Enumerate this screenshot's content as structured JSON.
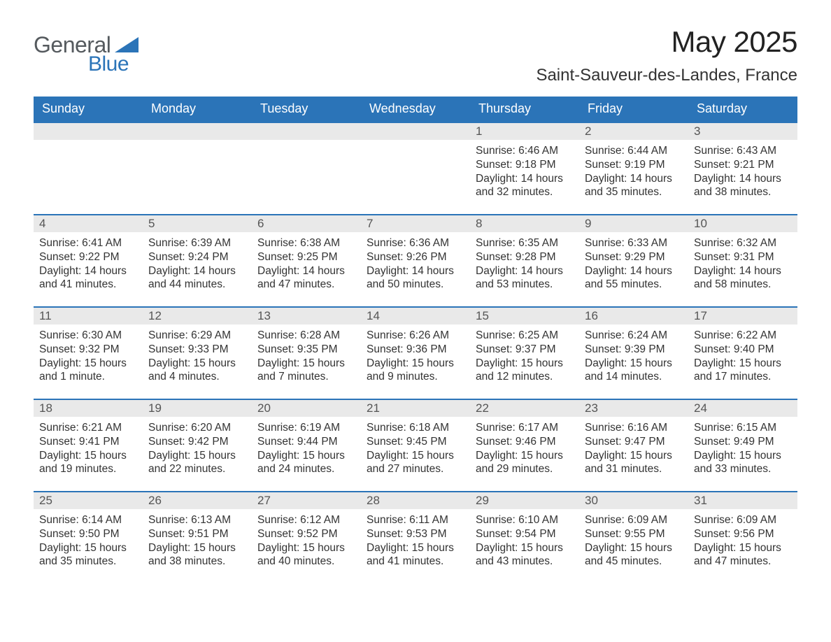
{
  "logo": {
    "word1": "General",
    "word2": "Blue",
    "word1_color": "#555a5e",
    "word2_color": "#2b74b8",
    "triangle_color": "#2b74b8"
  },
  "header": {
    "title": "May 2025",
    "location": "Saint-Sauveur-des-Landes, France",
    "title_fontsize": 42,
    "location_fontsize": 24
  },
  "calendar": {
    "type": "table",
    "accent_color": "#2b74b8",
    "header_bg": "#2b74b8",
    "header_text_color": "#ffffff",
    "daynum_bg": "#e9e9e9",
    "daynum_text_color": "#555555",
    "body_text_color": "#333333",
    "background_color": "#ffffff",
    "row_border_color": "#2b74b8",
    "body_fontsize": 15.5,
    "header_fontsize": 18,
    "columns": [
      "Sunday",
      "Monday",
      "Tuesday",
      "Wednesday",
      "Thursday",
      "Friday",
      "Saturday"
    ],
    "weeks": [
      [
        {
          "day": "",
          "sunrise": "",
          "sunset": "",
          "daylight": ""
        },
        {
          "day": "",
          "sunrise": "",
          "sunset": "",
          "daylight": ""
        },
        {
          "day": "",
          "sunrise": "",
          "sunset": "",
          "daylight": ""
        },
        {
          "day": "",
          "sunrise": "",
          "sunset": "",
          "daylight": ""
        },
        {
          "day": "1",
          "sunrise": "Sunrise: 6:46 AM",
          "sunset": "Sunset: 9:18 PM",
          "daylight": "Daylight: 14 hours and 32 minutes."
        },
        {
          "day": "2",
          "sunrise": "Sunrise: 6:44 AM",
          "sunset": "Sunset: 9:19 PM",
          "daylight": "Daylight: 14 hours and 35 minutes."
        },
        {
          "day": "3",
          "sunrise": "Sunrise: 6:43 AM",
          "sunset": "Sunset: 9:21 PM",
          "daylight": "Daylight: 14 hours and 38 minutes."
        }
      ],
      [
        {
          "day": "4",
          "sunrise": "Sunrise: 6:41 AM",
          "sunset": "Sunset: 9:22 PM",
          "daylight": "Daylight: 14 hours and 41 minutes."
        },
        {
          "day": "5",
          "sunrise": "Sunrise: 6:39 AM",
          "sunset": "Sunset: 9:24 PM",
          "daylight": "Daylight: 14 hours and 44 minutes."
        },
        {
          "day": "6",
          "sunrise": "Sunrise: 6:38 AM",
          "sunset": "Sunset: 9:25 PM",
          "daylight": "Daylight: 14 hours and 47 minutes."
        },
        {
          "day": "7",
          "sunrise": "Sunrise: 6:36 AM",
          "sunset": "Sunset: 9:26 PM",
          "daylight": "Daylight: 14 hours and 50 minutes."
        },
        {
          "day": "8",
          "sunrise": "Sunrise: 6:35 AM",
          "sunset": "Sunset: 9:28 PM",
          "daylight": "Daylight: 14 hours and 53 minutes."
        },
        {
          "day": "9",
          "sunrise": "Sunrise: 6:33 AM",
          "sunset": "Sunset: 9:29 PM",
          "daylight": "Daylight: 14 hours and 55 minutes."
        },
        {
          "day": "10",
          "sunrise": "Sunrise: 6:32 AM",
          "sunset": "Sunset: 9:31 PM",
          "daylight": "Daylight: 14 hours and 58 minutes."
        }
      ],
      [
        {
          "day": "11",
          "sunrise": "Sunrise: 6:30 AM",
          "sunset": "Sunset: 9:32 PM",
          "daylight": "Daylight: 15 hours and 1 minute."
        },
        {
          "day": "12",
          "sunrise": "Sunrise: 6:29 AM",
          "sunset": "Sunset: 9:33 PM",
          "daylight": "Daylight: 15 hours and 4 minutes."
        },
        {
          "day": "13",
          "sunrise": "Sunrise: 6:28 AM",
          "sunset": "Sunset: 9:35 PM",
          "daylight": "Daylight: 15 hours and 7 minutes."
        },
        {
          "day": "14",
          "sunrise": "Sunrise: 6:26 AM",
          "sunset": "Sunset: 9:36 PM",
          "daylight": "Daylight: 15 hours and 9 minutes."
        },
        {
          "day": "15",
          "sunrise": "Sunrise: 6:25 AM",
          "sunset": "Sunset: 9:37 PM",
          "daylight": "Daylight: 15 hours and 12 minutes."
        },
        {
          "day": "16",
          "sunrise": "Sunrise: 6:24 AM",
          "sunset": "Sunset: 9:39 PM",
          "daylight": "Daylight: 15 hours and 14 minutes."
        },
        {
          "day": "17",
          "sunrise": "Sunrise: 6:22 AM",
          "sunset": "Sunset: 9:40 PM",
          "daylight": "Daylight: 15 hours and 17 minutes."
        }
      ],
      [
        {
          "day": "18",
          "sunrise": "Sunrise: 6:21 AM",
          "sunset": "Sunset: 9:41 PM",
          "daylight": "Daylight: 15 hours and 19 minutes."
        },
        {
          "day": "19",
          "sunrise": "Sunrise: 6:20 AM",
          "sunset": "Sunset: 9:42 PM",
          "daylight": "Daylight: 15 hours and 22 minutes."
        },
        {
          "day": "20",
          "sunrise": "Sunrise: 6:19 AM",
          "sunset": "Sunset: 9:44 PM",
          "daylight": "Daylight: 15 hours and 24 minutes."
        },
        {
          "day": "21",
          "sunrise": "Sunrise: 6:18 AM",
          "sunset": "Sunset: 9:45 PM",
          "daylight": "Daylight: 15 hours and 27 minutes."
        },
        {
          "day": "22",
          "sunrise": "Sunrise: 6:17 AM",
          "sunset": "Sunset: 9:46 PM",
          "daylight": "Daylight: 15 hours and 29 minutes."
        },
        {
          "day": "23",
          "sunrise": "Sunrise: 6:16 AM",
          "sunset": "Sunset: 9:47 PM",
          "daylight": "Daylight: 15 hours and 31 minutes."
        },
        {
          "day": "24",
          "sunrise": "Sunrise: 6:15 AM",
          "sunset": "Sunset: 9:49 PM",
          "daylight": "Daylight: 15 hours and 33 minutes."
        }
      ],
      [
        {
          "day": "25",
          "sunrise": "Sunrise: 6:14 AM",
          "sunset": "Sunset: 9:50 PM",
          "daylight": "Daylight: 15 hours and 35 minutes."
        },
        {
          "day": "26",
          "sunrise": "Sunrise: 6:13 AM",
          "sunset": "Sunset: 9:51 PM",
          "daylight": "Daylight: 15 hours and 38 minutes."
        },
        {
          "day": "27",
          "sunrise": "Sunrise: 6:12 AM",
          "sunset": "Sunset: 9:52 PM",
          "daylight": "Daylight: 15 hours and 40 minutes."
        },
        {
          "day": "28",
          "sunrise": "Sunrise: 6:11 AM",
          "sunset": "Sunset: 9:53 PM",
          "daylight": "Daylight: 15 hours and 41 minutes."
        },
        {
          "day": "29",
          "sunrise": "Sunrise: 6:10 AM",
          "sunset": "Sunset: 9:54 PM",
          "daylight": "Daylight: 15 hours and 43 minutes."
        },
        {
          "day": "30",
          "sunrise": "Sunrise: 6:09 AM",
          "sunset": "Sunset: 9:55 PM",
          "daylight": "Daylight: 15 hours and 45 minutes."
        },
        {
          "day": "31",
          "sunrise": "Sunrise: 6:09 AM",
          "sunset": "Sunset: 9:56 PM",
          "daylight": "Daylight: 15 hours and 47 minutes."
        }
      ]
    ]
  }
}
